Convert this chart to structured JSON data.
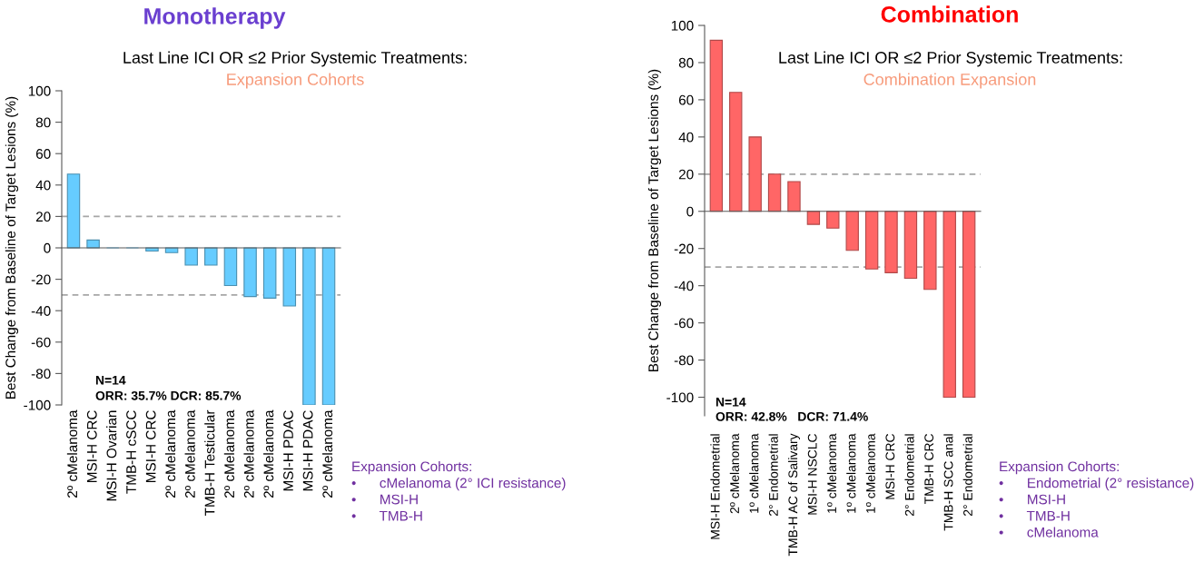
{
  "chart_data": [
    {
      "type": "bar",
      "title": "Monotherapy",
      "subtitle": "Last Line ICI OR ≤2 Prior Systemic Treatments:",
      "ylabel": "Best Change from Baseline of Target Lesions (%)",
      "annotations": [
        "Expansion Cohorts",
        "N=14",
        "ORR: 35.7% DCR: 85.7%",
        "Expansion Cohorts:\n•      cMelanoma (2° ICI resistance)\n•      MSI-H\n•      TMB-H"
      ],
      "categories": [
        "2º cMelanoma",
        "MSI-H CRC",
        "MSI-H Ovarian",
        "TMB-H cSCC",
        "MSI-H CRC",
        "2º cMelanoma",
        "2º cMelanoma",
        "TMB-H Testicular",
        "2º cMelanoma",
        "2º cMelanoma",
        "2º cMelanoma",
        "MSI-H PDAC",
        "MSI-H PDAC",
        "2º cMelanoma"
      ],
      "values": [
        47,
        5,
        0,
        0,
        -2,
        -3,
        -11,
        -11,
        -24,
        -31,
        -32,
        -37,
        -100,
        -100
      ],
      "color": "#66ccff",
      "ylim": [
        -100,
        100
      ],
      "yticks": [
        -100,
        -80,
        -60,
        -40,
        -20,
        0,
        20,
        40,
        60,
        80,
        100
      ],
      "ref_lines": [
        {
          "axis": "y",
          "value": 20,
          "label": null,
          "color": "#a6a6a6",
          "line_style": "dashed"
        },
        {
          "axis": "y",
          "value": -30,
          "label": null,
          "color": "#a6a6a6",
          "line_style": "dashed"
        }
      ]
    },
    {
      "type": "bar",
      "title": "Combination",
      "subtitle": "Last Line ICI OR ≤2 Prior Systemic Treatments:",
      "ylabel": "Best Change from Baseline of Target Lesions (%)",
      "annotations": [
        "Combination Expansion",
        "N=14",
        "ORR: 42.8%   DCR: 71.4%",
        "Expansion Cohorts:\n•      Endometrial (2° resistance)\n•      MSI-H\n•      TMB-H\n•      cMelanoma"
      ],
      "categories": [
        "MSI-H Endometrial",
        "2º cMelanoma",
        "1º cMelanoma",
        "2° Endometrial",
        "TMB-H AC of Salivary",
        "MSI-H NSCLC",
        "1º cMelanoma",
        "1º cMelanoma",
        "1º cMelanoma",
        "MSI-H CRC",
        "2° Endometrial",
        "TMB-H CRC",
        "TMB-H SCC anal",
        "2° Endometrial"
      ],
      "values": [
        92,
        64,
        40,
        20,
        16,
        -7,
        -9,
        -21,
        -31,
        -33,
        -36,
        -42,
        -100,
        -100
      ],
      "color": "#ff6666",
      "ylim": [
        -110,
        100
      ],
      "yticks": [
        -100,
        -80,
        -60,
        -40,
        -20,
        0,
        20,
        40,
        60,
        80,
        100
      ],
      "ref_lines": [
        {
          "axis": "y",
          "value": 20,
          "label": null,
          "color": "#a6a6a6",
          "line_style": "dashed"
        },
        {
          "axis": "y",
          "value": -30,
          "label": null,
          "color": "#a6a6a6",
          "line_style": "dashed"
        }
      ]
    }
  ]
}
